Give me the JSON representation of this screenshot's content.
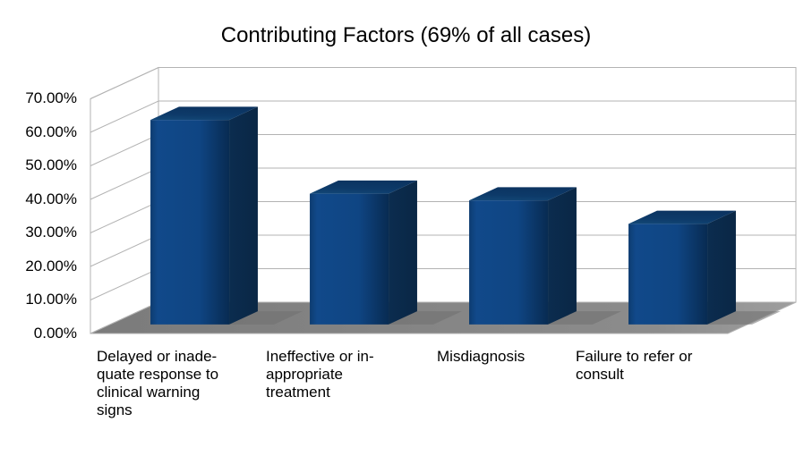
{
  "chart_data": {
    "type": "bar",
    "projection": "3d",
    "title": "Contributing Factors (69% of all cases)",
    "categories": [
      "Delayed or inadequate response to clinical warning signs",
      "Ineffective or inappropriate treatment",
      "Misdiagnosis",
      "Failure to refer or consult"
    ],
    "category_labels_wrapped": [
      "Delayed or inade-\nquate response to\nclinical warning\nsigns",
      "Ineffective or in-\nappropriate\ntreatment",
      "Misdiagnosis",
      "Failure to refer or\nconsult"
    ],
    "values": [
      61,
      39,
      37,
      30
    ],
    "unit": "%",
    "ylim": [
      0,
      70
    ],
    "y_tick_step": 10,
    "y_tick_labels": [
      "70.00%",
      "60.00%",
      "50.00%",
      "40.00%",
      "30.00%",
      "20.00%",
      "10.00%",
      "0.00%"
    ],
    "grid": true,
    "legend": false,
    "colors": {
      "bar_front": [
        "#0d3c70",
        "#11498a",
        "#0f4583",
        "#082b52"
      ],
      "bar_top": [
        "#0c3461",
        "#0d3a69",
        "#134877"
      ],
      "bar_side": [
        "#0b2c4f",
        "#0a2745"
      ],
      "floor_left": "#7b7b7b",
      "floor_mid": "#8c8c8c",
      "floor_right": "#9e9e9e",
      "shadow": "#6f6f6f",
      "wall": "#ffffff",
      "grid_line": "#b3b3b3",
      "text": "#000000"
    }
  }
}
